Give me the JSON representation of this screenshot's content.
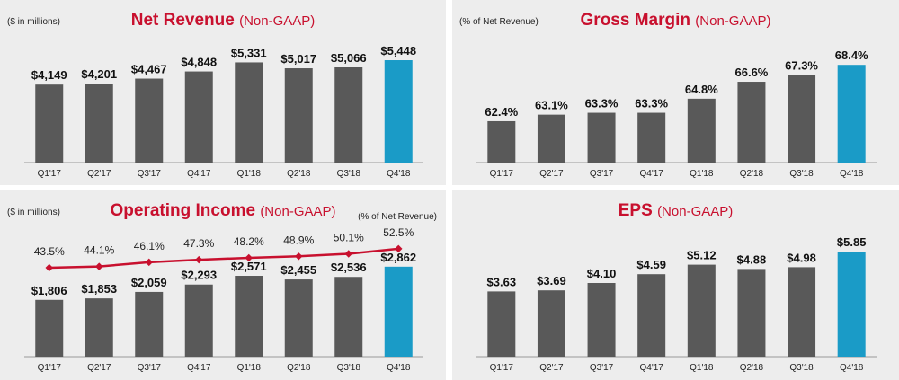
{
  "colors": {
    "bar": "#595959",
    "highlight": "#1a9bc7",
    "title": "#c8102e",
    "line": "#c8102e",
    "panel": "#ededed"
  },
  "chart_data": [
    {
      "type": "bar",
      "title": "Net Revenue",
      "subtitle": "(Non-GAAP)",
      "note_left": "($ in millions)",
      "note_right": "",
      "categories": [
        "Q1'17",
        "Q2'17",
        "Q3'17",
        "Q4'17",
        "Q1'18",
        "Q2'18",
        "Q3'18",
        "Q4'18"
      ],
      "values": [
        4149,
        4201,
        4467,
        4848,
        5331,
        5017,
        5066,
        5448
      ],
      "labels": [
        "$4,149",
        "$4,201",
        "$4,467",
        "$4,848",
        "$5,331",
        "$5,017",
        "$5,066",
        "$5,448"
      ],
      "ylim": [
        0,
        6500
      ],
      "highlight_index": 7
    },
    {
      "type": "bar",
      "title": "Gross Margin",
      "subtitle": "(Non-GAAP)",
      "note_left": "(% of Net Revenue)",
      "note_right": "",
      "categories": [
        "Q1'17",
        "Q2'17",
        "Q3'17",
        "Q4'17",
        "Q1'18",
        "Q2'18",
        "Q3'18",
        "Q4'18"
      ],
      "values": [
        62.4,
        63.1,
        63.3,
        63.3,
        64.8,
        66.6,
        67.3,
        68.4
      ],
      "labels": [
        "62.4%",
        "63.1%",
        "63.3%",
        "63.3%",
        "64.8%",
        "66.6%",
        "67.3%",
        "68.4%"
      ],
      "ylim": [
        58,
        71
      ],
      "highlight_index": 7
    },
    {
      "type": "bar",
      "title": "Operating Income",
      "subtitle": "(Non-GAAP)",
      "note_left": "($ in millions)",
      "note_right": "(% of Net Revenue)",
      "categories": [
        "Q1'17",
        "Q2'17",
        "Q3'17",
        "Q4'17",
        "Q1'18",
        "Q2'18",
        "Q3'18",
        "Q4'18"
      ],
      "values": [
        1806,
        1853,
        2059,
        2293,
        2571,
        2455,
        2536,
        2862
      ],
      "labels": [
        "$1,806",
        "$1,853",
        "$2,059",
        "$2,293",
        "$2,571",
        "$2,455",
        "$2,536",
        "$2,862"
      ],
      "ylim": [
        0,
        4000
      ],
      "highlight_index": 7,
      "line": {
        "values": [
          43.5,
          44.1,
          46.1,
          47.3,
          48.2,
          48.9,
          50.1,
          52.5
        ],
        "labels": [
          "43.5%",
          "44.1%",
          "46.1%",
          "47.3%",
          "48.2%",
          "48.9%",
          "50.1%",
          "52.5%"
        ]
      }
    },
    {
      "type": "bar",
      "title": "EPS",
      "subtitle": "(Non-GAAP)",
      "note_left": "",
      "note_right": "",
      "categories": [
        "Q1'17",
        "Q2'17",
        "Q3'17",
        "Q4'17",
        "Q1'18",
        "Q2'18",
        "Q3'18",
        "Q4'18"
      ],
      "values": [
        3.63,
        3.69,
        4.1,
        4.59,
        5.12,
        4.88,
        4.98,
        5.85
      ],
      "labels": [
        "$3.63",
        "$3.69",
        "$4.10",
        "$4.59",
        "$5.12",
        "$4.88",
        "$4.98",
        "$5.85"
      ],
      "ylim": [
        0,
        7
      ],
      "highlight_index": 7
    }
  ]
}
